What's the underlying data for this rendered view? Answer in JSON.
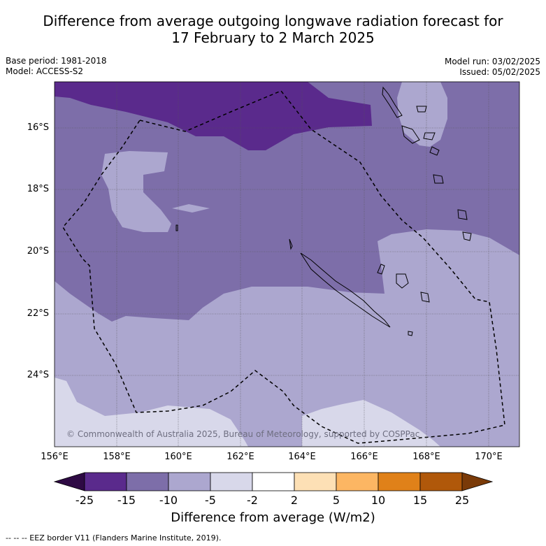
{
  "title_line1": "Difference from average outgoing longwave radiation forecast for",
  "title_line2": "17 February to 2 March 2025",
  "base_period": "Base period: 1981-2018",
  "model": "Model: ACCESS-S2",
  "model_run": "Model run: 03/02/2025",
  "issued": "Issued: 05/02/2025",
  "copyright": "© Commonwealth of Australia 2025, Bureau of Meteorology, supported by COSPPac",
  "lat_labels": [
    "16°S",
    "18°S",
    "20°S",
    "22°S",
    "24°S"
  ],
  "lon_labels": [
    "156°E",
    "158°E",
    "160°E",
    "162°E",
    "164°E",
    "166°E",
    "168°E",
    "170°E"
  ],
  "colorbar": {
    "title": "Difference from average (W/m2)",
    "ticks": [
      "-25",
      "-15",
      "-10",
      "-5",
      "-2",
      "2",
      "5",
      "10",
      "15",
      "25"
    ],
    "colors": [
      "#5a2a8c",
      "#7d6ea9",
      "#aca7cf",
      "#d8d8ea",
      "#ffffff",
      "#fde0b5",
      "#fcb663",
      "#e08119",
      "#b0580a"
    ],
    "under_color": "#2e0a44",
    "over_color": "#7a3a08"
  },
  "footnote": "--  --  -- EEZ border V11 (Flanders Marine Institute, 2019)."
}
